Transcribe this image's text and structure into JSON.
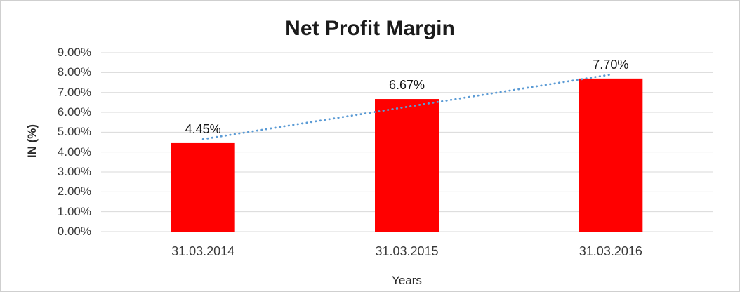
{
  "chart_data": {
    "type": "bar",
    "title": "Net Profit Margin",
    "categories": [
      "31.03.2014",
      "31.03.2015",
      "31.03.2016"
    ],
    "values": [
      4.45,
      6.67,
      7.7
    ],
    "data_labels": [
      "4.45%",
      "6.67%",
      "7.70%"
    ],
    "xlabel": "Years",
    "ylabel": "IN (%)",
    "ylim": [
      0,
      9
    ],
    "ytick_step": 1,
    "ytick_labels": [
      "0.00%",
      "1.00%",
      "2.00%",
      "3.00%",
      "4.00%",
      "5.00%",
      "6.00%",
      "7.00%",
      "8.00%",
      "9.00%"
    ],
    "grid": true,
    "legend": "none",
    "bar_color": "#FF0000",
    "gridline_color": "#D9D9D9",
    "trendline": {
      "type": "linear",
      "style": "dotted",
      "color": "#5B9BD5"
    }
  }
}
